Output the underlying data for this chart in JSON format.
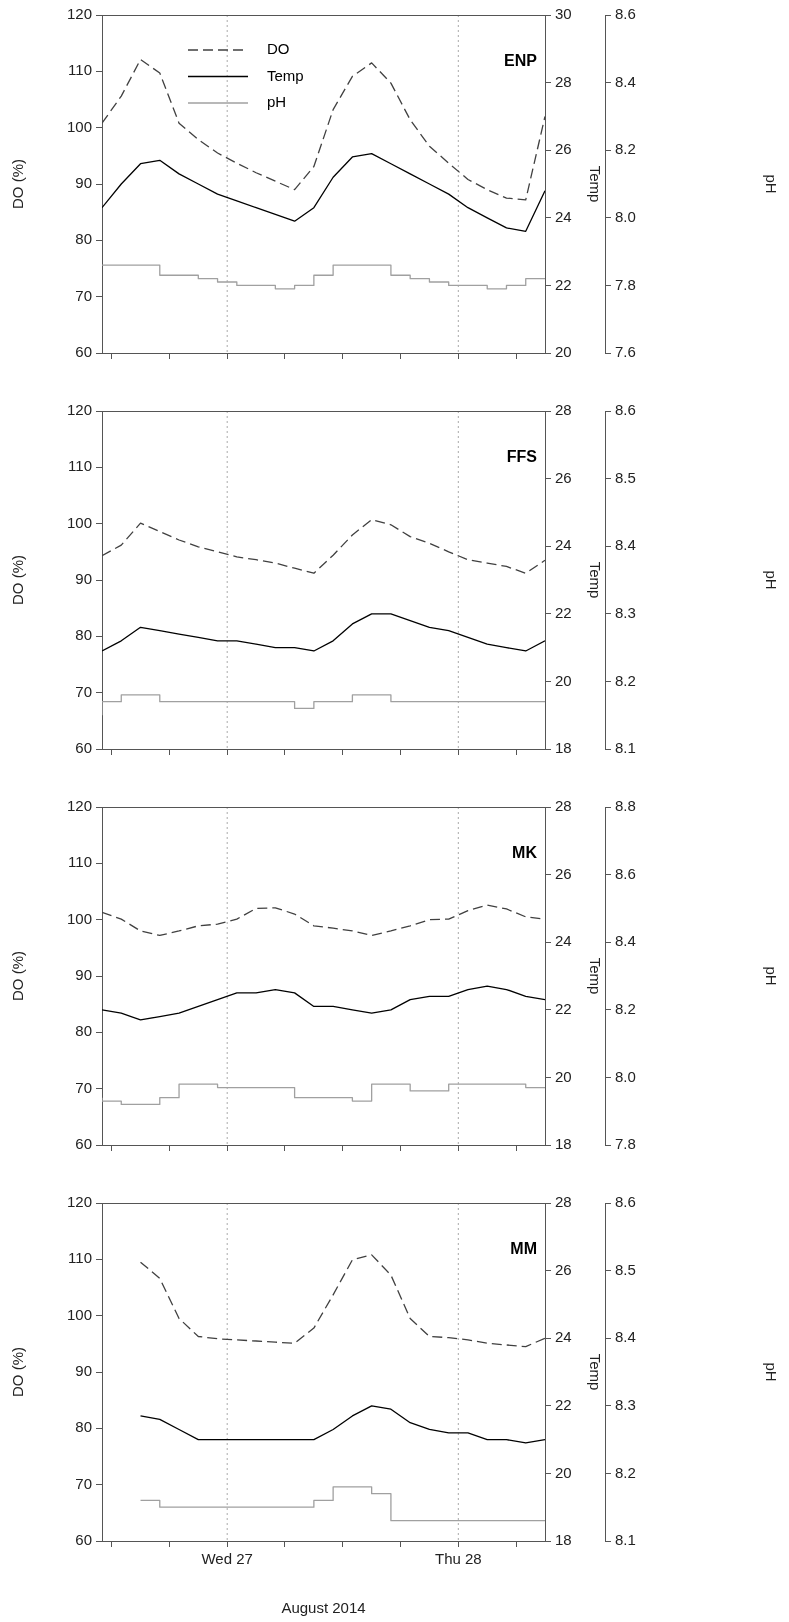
{
  "chart_data": [
    {
      "type": "line",
      "title": "ENP",
      "ylabel": "DO (%)",
      "y2label": "Temp",
      "y3label": "pH",
      "legend": "top left",
      "tick_labels": "y",
      "x": [
        "2014-08-26T11:00",
        "2014-08-26T13:00",
        "2014-08-26T15:00",
        "2014-08-26T17:00",
        "2014-08-26T19:00",
        "2014-08-26T21:00",
        "2014-08-26T23:00",
        "2014-08-27T01:00",
        "2014-08-27T03:00",
        "2014-08-27T05:00",
        "2014-08-27T07:00",
        "2014-08-27T09:00",
        "2014-08-27T11:00",
        "2014-08-27T13:00",
        "2014-08-27T15:00",
        "2014-08-27T17:00",
        "2014-08-27T19:00",
        "2014-08-27T21:00",
        "2014-08-27T23:00",
        "2014-08-28T01:00",
        "2014-08-28T03:00",
        "2014-08-28T05:00",
        "2014-08-28T07:00",
        "2014-08-28T09:00"
      ],
      "xlim": [
        "2014-08-26T11:00",
        "2014-08-28T09:00"
      ],
      "xticks": [
        {
          "value": "2014-08-26T12:00",
          "label": null
        },
        {
          "value": "2014-08-26T18:00",
          "label": null
        },
        {
          "value": "2014-08-27T00:00",
          "label": null
        },
        {
          "value": "2014-08-27T06:00",
          "label": null
        },
        {
          "value": "2014-08-27T12:00",
          "label": null
        },
        {
          "value": "2014-08-27T18:00",
          "label": null
        },
        {
          "value": "2014-08-28T00:00",
          "label": null
        },
        {
          "value": "2014-08-28T06:00",
          "label": null
        }
      ],
      "ylim": [
        60,
        120
      ],
      "yticks": [
        60,
        70,
        80,
        90,
        100,
        110,
        120
      ],
      "y2lim": [
        20,
        30
      ],
      "y2ticks": [
        20,
        22,
        24,
        26,
        28,
        30
      ],
      "y3lim": [
        7.6,
        8.6
      ],
      "y3ticks": [
        7.6,
        7.8,
        {
          "value": 8.0,
          "label": "8.0"
        },
        8.2,
        8.4,
        8.6
      ],
      "ref_lines": [
        {
          "axis": "x",
          "value": "2014-08-27T00:00",
          "color": "#aaaaaa",
          "line_style": "dotted"
        },
        {
          "axis": "x",
          "value": "2014-08-28T00:00",
          "color": "#aaaaaa",
          "line_style": "dotted"
        }
      ],
      "series": [
        {
          "name": "DO",
          "color": "#404040",
          "line_style": "dashed",
          "values": [
            100.8,
            105.6,
            112.1,
            109.7,
            100.8,
            97.9,
            95.5,
            93.7,
            92.0,
            90.5,
            89.0,
            93.1,
            103.2,
            109.1,
            111.5,
            107.9,
            101.4,
            96.7,
            93.7,
            90.8,
            89.0,
            87.5,
            87.2,
            102.0
          ]
        },
        {
          "name": "Temp",
          "color": "#000000",
          "line_style": "solid",
          "axis": "y2",
          "values": [
            24.3,
            25.0,
            25.6,
            25.7,
            25.3,
            25.0,
            24.7,
            24.5,
            24.3,
            24.1,
            23.9,
            24.3,
            25.2,
            25.8,
            25.9,
            25.6,
            25.3,
            25.0,
            24.7,
            24.3,
            24.0,
            23.7,
            23.6,
            24.8
          ]
        },
        {
          "name": "pH",
          "type": "step",
          "color": "#a0a0a0",
          "line_style": "solid",
          "axis": "y3",
          "values": [
            7.86,
            7.86,
            7.86,
            7.86,
            7.83,
            7.83,
            7.82,
            7.81,
            7.8,
            7.8,
            7.79,
            7.8,
            7.83,
            7.86,
            7.86,
            7.86,
            7.83,
            7.82,
            7.81,
            7.8,
            7.8,
            7.79,
            7.8,
            7.82
          ]
        }
      ]
    },
    {
      "type": "line",
      "title": "FFS",
      "ylabel": "DO (%)",
      "y2label": "Temp",
      "y3label": "pH",
      "tick_labels": "y",
      "x": [
        "2014-08-26T11:00",
        "2014-08-26T13:00",
        "2014-08-26T15:00",
        "2014-08-26T17:00",
        "2014-08-26T19:00",
        "2014-08-26T21:00",
        "2014-08-26T23:00",
        "2014-08-27T01:00",
        "2014-08-27T03:00",
        "2014-08-27T05:00",
        "2014-08-27T07:00",
        "2014-08-27T09:00",
        "2014-08-27T11:00",
        "2014-08-27T13:00",
        "2014-08-27T15:00",
        "2014-08-27T17:00",
        "2014-08-27T19:00",
        "2014-08-27T21:00",
        "2014-08-27T23:00",
        "2014-08-28T01:00",
        "2014-08-28T03:00",
        "2014-08-28T05:00",
        "2014-08-28T07:00",
        "2014-08-28T09:00"
      ],
      "xlim": [
        "2014-08-26T11:00",
        "2014-08-28T09:00"
      ],
      "xticks": [
        {
          "value": "2014-08-26T12:00",
          "label": null
        },
        {
          "value": "2014-08-26T18:00",
          "label": null
        },
        {
          "value": "2014-08-27T00:00",
          "label": null
        },
        {
          "value": "2014-08-27T06:00",
          "label": null
        },
        {
          "value": "2014-08-27T12:00",
          "label": null
        },
        {
          "value": "2014-08-27T18:00",
          "label": null
        },
        {
          "value": "2014-08-28T00:00",
          "label": null
        },
        {
          "value": "2014-08-28T06:00",
          "label": null
        }
      ],
      "ylim": [
        60,
        120
      ],
      "yticks": [
        60,
        70,
        80,
        90,
        100,
        110,
        120
      ],
      "y2lim": [
        18,
        28
      ],
      "y2ticks": [
        18,
        20,
        22,
        24,
        26,
        28
      ],
      "y3lim": [
        8.1,
        8.6
      ],
      "y3ticks": [
        8.1,
        8.2,
        8.3,
        8.4,
        8.5,
        8.6
      ],
      "ref_lines": [
        {
          "axis": "x",
          "value": "2014-08-27T00:00",
          "color": "#aaaaaa",
          "line_style": "dotted"
        },
        {
          "axis": "x",
          "value": "2014-08-28T00:00",
          "color": "#aaaaaa",
          "line_style": "dotted"
        }
      ],
      "series": [
        {
          "color": "#404040",
          "line_style": "dashed",
          "values": [
            94.3,
            96.2,
            100.1,
            98.6,
            97.1,
            95.9,
            95.0,
            94.1,
            93.6,
            93.0,
            92.1,
            91.2,
            94.4,
            98.0,
            100.7,
            99.8,
            97.7,
            96.5,
            95.0,
            93.6,
            93.0,
            92.4,
            91.2,
            93.5
          ]
        },
        {
          "color": "#000000",
          "line_style": "solid",
          "axis": "y2",
          "values": [
            20.9,
            21.2,
            21.6,
            21.5,
            21.4,
            21.3,
            21.2,
            21.2,
            21.1,
            21.0,
            21.0,
            20.9,
            21.2,
            21.7,
            22.0,
            22.0,
            21.8,
            21.6,
            21.5,
            21.3,
            21.1,
            21.0,
            20.9,
            21.2
          ]
        },
        {
          "type": "step",
          "color": "#a0a0a0",
          "line_style": "solid",
          "axis": "y3",
          "values": [
            8.15,
            8.17,
            8.18,
            8.18,
            8.17,
            8.17,
            8.17,
            8.17,
            8.17,
            8.17,
            8.17,
            8.16,
            8.17,
            8.17,
            8.18,
            8.18,
            8.17,
            8.17,
            8.17,
            8.17,
            8.17,
            8.17,
            8.17,
            8.17
          ]
        }
      ]
    },
    {
      "type": "line",
      "title": "MK",
      "ylabel": "DO (%)",
      "y2label": "Temp",
      "y3label": "pH",
      "tick_labels": "y",
      "x": [
        "2014-08-26T11:00",
        "2014-08-26T13:00",
        "2014-08-26T15:00",
        "2014-08-26T17:00",
        "2014-08-26T19:00",
        "2014-08-26T21:00",
        "2014-08-26T23:00",
        "2014-08-27T01:00",
        "2014-08-27T03:00",
        "2014-08-27T05:00",
        "2014-08-27T07:00",
        "2014-08-27T09:00",
        "2014-08-27T11:00",
        "2014-08-27T13:00",
        "2014-08-27T15:00",
        "2014-08-27T17:00",
        "2014-08-27T19:00",
        "2014-08-27T21:00",
        "2014-08-27T23:00",
        "2014-08-28T01:00",
        "2014-08-28T03:00",
        "2014-08-28T05:00",
        "2014-08-28T07:00",
        "2014-08-28T09:00"
      ],
      "xlim": [
        "2014-08-26T11:00",
        "2014-08-28T09:00"
      ],
      "xticks": [
        {
          "value": "2014-08-26T12:00",
          "label": null
        },
        {
          "value": "2014-08-26T18:00",
          "label": null
        },
        {
          "value": "2014-08-27T00:00",
          "label": null
        },
        {
          "value": "2014-08-27T06:00",
          "label": null
        },
        {
          "value": "2014-08-27T12:00",
          "label": null
        },
        {
          "value": "2014-08-27T18:00",
          "label": null
        },
        {
          "value": "2014-08-28T00:00",
          "label": null
        },
        {
          "value": "2014-08-28T06:00",
          "label": null
        }
      ],
      "ylim": [
        60,
        120
      ],
      "yticks": [
        60,
        70,
        80,
        90,
        100,
        110,
        120
      ],
      "y2lim": [
        18,
        28
      ],
      "y2ticks": [
        18,
        20,
        22,
        24,
        26,
        28
      ],
      "y3lim": [
        7.8,
        8.8
      ],
      "y3ticks": [
        7.8,
        {
          "value": 8.0,
          "label": "8.0"
        },
        8.2,
        8.4,
        8.6,
        8.8
      ],
      "ref_lines": [
        {
          "axis": "x",
          "value": "2014-08-27T00:00",
          "color": "#aaaaaa",
          "line_style": "dotted"
        },
        {
          "axis": "x",
          "value": "2014-08-28T00:00",
          "color": "#aaaaaa",
          "line_style": "dotted"
        }
      ],
      "series": [
        {
          "color": "#404040",
          "line_style": "dashed",
          "values": [
            101.3,
            100.1,
            98.0,
            97.2,
            98.0,
            98.9,
            99.2,
            100.1,
            102.0,
            102.1,
            101.0,
            98.9,
            98.5,
            98.0,
            97.2,
            98.0,
            98.9,
            100.0,
            100.1,
            101.6,
            102.6,
            101.9,
            100.5,
            100.1
          ]
        },
        {
          "color": "#000000",
          "line_style": "solid",
          "axis": "y2",
          "values": [
            22.0,
            21.9,
            21.7,
            21.8,
            21.9,
            22.1,
            22.3,
            22.5,
            22.5,
            22.6,
            22.5,
            22.1,
            22.1,
            22.0,
            21.9,
            22.0,
            22.3,
            22.4,
            22.4,
            22.6,
            22.7,
            22.6,
            22.4,
            22.3
          ]
        },
        {
          "type": "step",
          "color": "#a0a0a0",
          "line_style": "solid",
          "axis": "y3",
          "values": [
            7.94,
            7.93,
            7.92,
            7.92,
            7.94,
            7.98,
            7.98,
            7.97,
            7.97,
            7.97,
            7.97,
            7.94,
            7.94,
            7.94,
            7.93,
            7.98,
            7.98,
            7.96,
            7.96,
            7.98,
            7.98,
            7.98,
            7.98,
            7.97
          ]
        }
      ]
    },
    {
      "type": "line",
      "title": "MM",
      "xlabel": "August 2014",
      "ylabel": "DO (%)",
      "y2label": "Temp",
      "y3label": "pH",
      "x": [
        "2014-08-26T15:00",
        "2014-08-26T17:00",
        "2014-08-26T19:00",
        "2014-08-26T21:00",
        "2014-08-26T23:00",
        "2014-08-27T01:00",
        "2014-08-27T03:00",
        "2014-08-27T05:00",
        "2014-08-27T07:00",
        "2014-08-27T09:00",
        "2014-08-27T11:00",
        "2014-08-27T13:00",
        "2014-08-27T15:00",
        "2014-08-27T17:00",
        "2014-08-27T19:00",
        "2014-08-27T21:00",
        "2014-08-27T23:00",
        "2014-08-28T01:00",
        "2014-08-28T03:00",
        "2014-08-28T05:00",
        "2014-08-28T07:00",
        "2014-08-28T09:00"
      ],
      "xlim": [
        "2014-08-26T11:00",
        "2014-08-28T09:00"
      ],
      "xticks": [
        {
          "value": "2014-08-26T12:00",
          "label": null
        },
        {
          "value": "2014-08-26T18:00",
          "label": null
        },
        {
          "value": "2014-08-27T00:00",
          "label": "Wed 27"
        },
        {
          "value": "2014-08-27T06:00",
          "label": null
        },
        {
          "value": "2014-08-27T12:00",
          "label": null
        },
        {
          "value": "2014-08-27T18:00",
          "label": null
        },
        {
          "value": "2014-08-28T00:00",
          "label": "Thu 28"
        },
        {
          "value": "2014-08-28T06:00",
          "label": null
        }
      ],
      "ylim": [
        60,
        120
      ],
      "yticks": [
        60,
        70,
        80,
        90,
        100,
        110,
        120
      ],
      "y2lim": [
        18,
        28
      ],
      "y2ticks": [
        18,
        20,
        22,
        24,
        26,
        28
      ],
      "y3lim": [
        8.1,
        8.6
      ],
      "y3ticks": [
        8.1,
        8.2,
        8.3,
        8.4,
        8.5,
        8.6
      ],
      "ref_lines": [
        {
          "axis": "x",
          "value": "2014-08-27T00:00",
          "color": "#aaaaaa",
          "line_style": "dotted"
        },
        {
          "axis": "x",
          "value": "2014-08-28T00:00",
          "color": "#aaaaaa",
          "line_style": "dotted"
        }
      ],
      "series": [
        {
          "color": "#404040",
          "line_style": "dashed",
          "values": [
            109.5,
            106.6,
            99.5,
            96.3,
            95.9,
            95.7,
            95.5,
            95.3,
            95.1,
            97.8,
            103.7,
            109.9,
            110.8,
            107.2,
            99.5,
            96.3,
            96.1,
            95.7,
            95.1,
            94.8,
            94.5,
            96.0
          ]
        },
        {
          "color": "#000000",
          "line_style": "solid",
          "axis": "y2",
          "values": [
            21.7,
            21.6,
            21.3,
            21.0,
            21.0,
            21.0,
            21.0,
            21.0,
            21.0,
            21.0,
            21.3,
            21.7,
            22.0,
            21.9,
            21.5,
            21.3,
            21.2,
            21.2,
            21.0,
            21.0,
            20.9,
            21.0
          ]
        },
        {
          "type": "step",
          "color": "#a0a0a0",
          "line_style": "solid",
          "axis": "y3",
          "values": [
            8.16,
            8.16,
            8.15,
            8.15,
            8.15,
            8.15,
            8.15,
            8.15,
            8.15,
            8.15,
            8.16,
            8.18,
            8.18,
            8.17,
            8.13,
            8.13,
            8.13,
            8.13,
            8.13,
            8.13,
            8.13,
            8.13
          ]
        }
      ]
    }
  ]
}
